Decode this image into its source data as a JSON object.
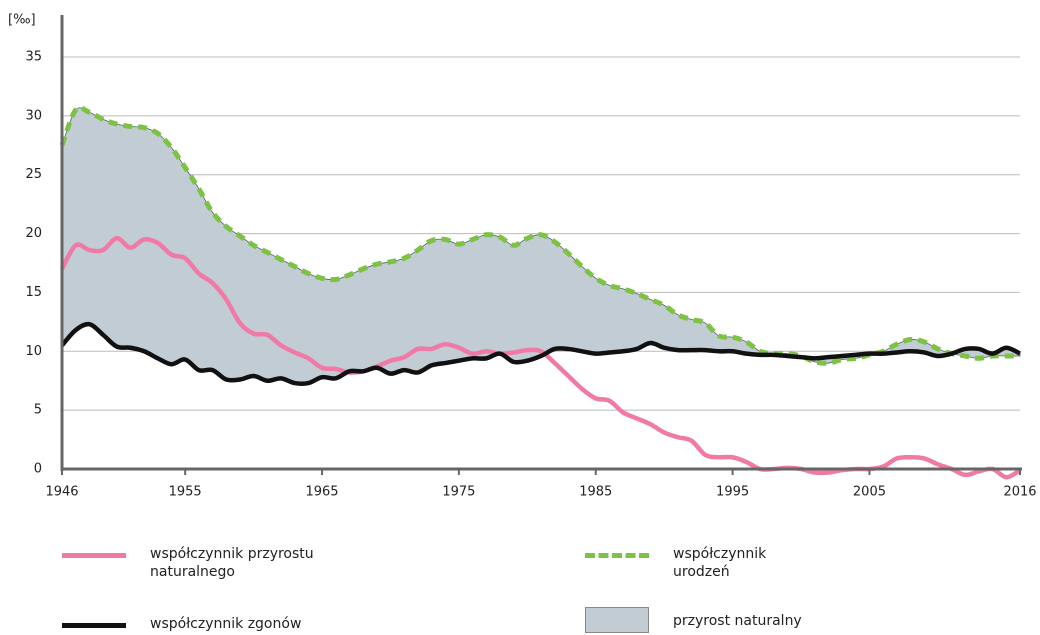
{
  "chart_data": {
    "type": "line",
    "ylabel": "[‰]",
    "x": [
      1946,
      1947,
      1948,
      1949,
      1950,
      1951,
      1952,
      1953,
      1954,
      1955,
      1956,
      1957,
      1958,
      1959,
      1960,
      1961,
      1962,
      1963,
      1964,
      1965,
      1966,
      1967,
      1968,
      1969,
      1970,
      1971,
      1972,
      1973,
      1974,
      1975,
      1976,
      1977,
      1978,
      1979,
      1980,
      1981,
      1982,
      1983,
      1984,
      1985,
      1986,
      1987,
      1988,
      1989,
      1990,
      1991,
      1992,
      1993,
      1994,
      1995,
      1996,
      1997,
      1998,
      1999,
      2000,
      2001,
      2002,
      2003,
      2004,
      2005,
      2006,
      2007,
      2008,
      2009,
      2010,
      2011,
      2012,
      2013,
      2014,
      2015,
      2016
    ],
    "xlim": [
      1946,
      2016
    ],
    "xticks": [
      1946,
      1955,
      1965,
      1975,
      1985,
      1995,
      2005,
      2016
    ],
    "ylim": [
      0,
      35
    ],
    "yticks": [
      0,
      5,
      10,
      15,
      20,
      25,
      30,
      35
    ],
    "grid": true,
    "series": [
      {
        "name": "współczynnik przyrostu naturalnego",
        "color": "#f07aa5",
        "style": "solid",
        "values": [
          17.0,
          19.0,
          18.6,
          18.6,
          19.6,
          18.8,
          19.5,
          19.2,
          18.2,
          17.9,
          16.6,
          15.8,
          14.4,
          12.4,
          11.5,
          11.4,
          10.5,
          9.9,
          9.4,
          8.6,
          8.5,
          8.2,
          8.3,
          8.7,
          9.2,
          9.5,
          10.2,
          10.2,
          10.6,
          10.3,
          9.8,
          10.0,
          9.8,
          9.9,
          10.1,
          10.0,
          9.0,
          7.9,
          6.8,
          6.0,
          5.8,
          4.8,
          4.3,
          3.8,
          3.1,
          2.7,
          2.4,
          1.2,
          1.0,
          1.0,
          0.6,
          0.0,
          0.0,
          0.1,
          0.0,
          -0.3,
          -0.3,
          -0.1,
          0.0,
          0.0,
          0.2,
          0.9,
          1.0,
          0.9,
          0.4,
          0.0,
          -0.5,
          -0.2,
          0.0,
          -0.7,
          -0.1
        ]
      },
      {
        "name": "współczynnik urodzeń",
        "color": "#7dc242",
        "style": "dashed",
        "values": [
          27.5,
          30.5,
          30.3,
          29.7,
          29.3,
          29.1,
          29.0,
          28.5,
          27.3,
          25.6,
          23.8,
          21.8,
          20.6,
          19.8,
          19.0,
          18.4,
          17.8,
          17.2,
          16.6,
          16.2,
          16.1,
          16.5,
          17.0,
          17.4,
          17.6,
          17.9,
          18.6,
          19.4,
          19.5,
          19.1,
          19.5,
          19.9,
          19.7,
          19.0,
          19.6,
          19.9,
          19.3,
          18.3,
          17.2,
          16.2,
          15.6,
          15.3,
          14.9,
          14.4,
          13.9,
          13.1,
          12.7,
          12.4,
          11.3,
          11.2,
          10.8,
          10.0,
          9.8,
          9.8,
          9.6,
          9.1,
          9.0,
          9.3,
          9.4,
          9.7,
          10.0,
          10.6,
          11.0,
          10.8,
          10.2,
          9.8,
          9.6,
          9.4,
          9.6,
          9.6,
          9.6
        ]
      },
      {
        "name": "współczynnik zgonów",
        "color": "#111111",
        "style": "solid",
        "values": [
          10.5,
          11.8,
          12.3,
          11.4,
          10.4,
          10.3,
          10.0,
          9.4,
          8.9,
          9.3,
          8.4,
          8.4,
          7.6,
          7.6,
          7.9,
          7.5,
          7.7,
          7.3,
          7.3,
          7.8,
          7.7,
          8.3,
          8.3,
          8.6,
          8.1,
          8.4,
          8.2,
          8.8,
          9.0,
          9.2,
          9.4,
          9.4,
          9.8,
          9.1,
          9.2,
          9.6,
          10.2,
          10.2,
          10.0,
          9.8,
          9.9,
          10.0,
          10.2,
          10.7,
          10.3,
          10.1,
          10.1,
          10.1,
          10.0,
          10.0,
          9.8,
          9.7,
          9.7,
          9.6,
          9.5,
          9.4,
          9.5,
          9.6,
          9.7,
          9.8,
          9.8,
          9.9,
          10.0,
          9.9,
          9.6,
          9.8,
          10.2,
          10.2,
          9.8,
          10.3,
          9.8
        ]
      }
    ],
    "area": {
      "name": "przyrost naturalny",
      "color": "#c1ccd5",
      "between": [
        1,
        2
      ]
    }
  }
}
